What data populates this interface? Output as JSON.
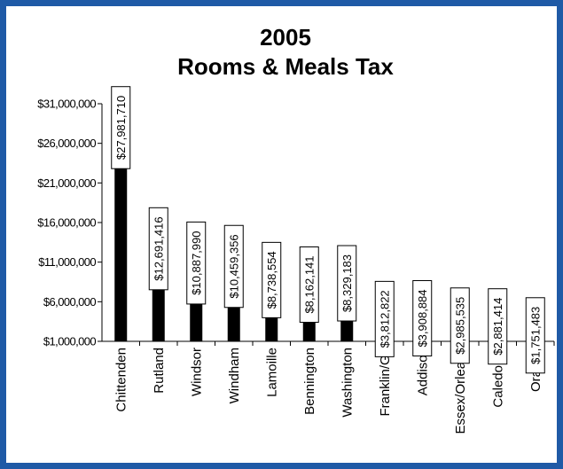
{
  "chart_data": {
    "type": "bar",
    "title": "2005",
    "subtitle": "Rooms & Meals Tax",
    "categories": [
      "Chittenden",
      "Rutland",
      "Windsor",
      "Windham",
      "Lamoille",
      "Bennington",
      "Washington",
      "Franklin/G I",
      "Addison",
      "Essex/Orleans",
      "Caledonia",
      "Orange"
    ],
    "values": [
      27981710,
      12691416,
      10887990,
      10459356,
      8738554,
      8162141,
      8329183,
      3812822,
      3908884,
      2985535,
      2881414,
      1751483
    ],
    "data_labels": [
      "$27,981,710",
      "$12,691,416",
      "$10,887,990",
      "$10,459,356",
      "$8,738,554",
      "$8,162,141",
      "$8,329,183",
      "$3,812,822",
      "$3,908,884",
      "$2,985,535",
      "$2,881,414",
      "$1,751,483"
    ],
    "yticks": [
      1000000,
      6000000,
      11000000,
      16000000,
      21000000,
      26000000,
      31000000
    ],
    "ytick_labels": [
      "$1,000,000",
      "$6,000,000",
      "$11,000,000",
      "$16,000,000",
      "$21,000,000",
      "$26,000,000",
      "$31,000,000"
    ],
    "ylim": [
      1000000,
      31000000
    ],
    "xlabel": "",
    "ylabel": "",
    "grid": false,
    "bar_color": "#000000",
    "frame_color": "#1f5aa6"
  }
}
